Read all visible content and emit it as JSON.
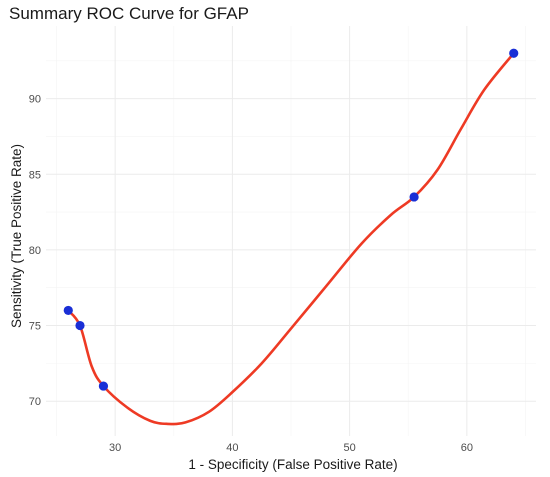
{
  "chart_data": {
    "type": "line",
    "title": "Summary ROC Curve for GFAP",
    "xlabel": "1 - Specificity (False Positive Rate)",
    "ylabel": "Sensitivity (True Positive Rate)",
    "xlim": [
      24.1,
      65.9
    ],
    "ylim": [
      67.7,
      94.8
    ],
    "x_ticks": [
      30,
      40,
      50,
      60
    ],
    "y_ticks": [
      70,
      75,
      80,
      85,
      90
    ],
    "grid": true,
    "series": [
      {
        "kind": "points",
        "color": "#1a2fd6",
        "points": [
          {
            "x": 26.0,
            "y": 76.0
          },
          {
            "x": 27.0,
            "y": 75.0
          },
          {
            "x": 29.0,
            "y": 71.0
          },
          {
            "x": 55.5,
            "y": 83.5
          },
          {
            "x": 64.0,
            "y": 93.0
          }
        ]
      },
      {
        "kind": "smooth-curve",
        "color": "#ee3a24",
        "points": [
          {
            "x": 26.0,
            "y": 76.0
          },
          {
            "x": 27.0,
            "y": 75.0
          },
          {
            "x": 28.0,
            "y": 72.3
          },
          {
            "x": 29.0,
            "y": 71.0
          },
          {
            "x": 31.0,
            "y": 69.6
          },
          {
            "x": 33.0,
            "y": 68.7
          },
          {
            "x": 34.5,
            "y": 68.5
          },
          {
            "x": 36.0,
            "y": 68.6
          },
          {
            "x": 38.0,
            "y": 69.3
          },
          {
            "x": 40.0,
            "y": 70.6
          },
          {
            "x": 42.5,
            "y": 72.5
          },
          {
            "x": 45.0,
            "y": 74.8
          },
          {
            "x": 48.0,
            "y": 77.6
          },
          {
            "x": 51.0,
            "y": 80.4
          },
          {
            "x": 53.5,
            "y": 82.3
          },
          {
            "x": 55.5,
            "y": 83.5
          },
          {
            "x": 57.5,
            "y": 85.3
          },
          {
            "x": 59.5,
            "y": 88.0
          },
          {
            "x": 61.5,
            "y": 90.6
          },
          {
            "x": 64.0,
            "y": 93.0
          }
        ]
      }
    ]
  }
}
